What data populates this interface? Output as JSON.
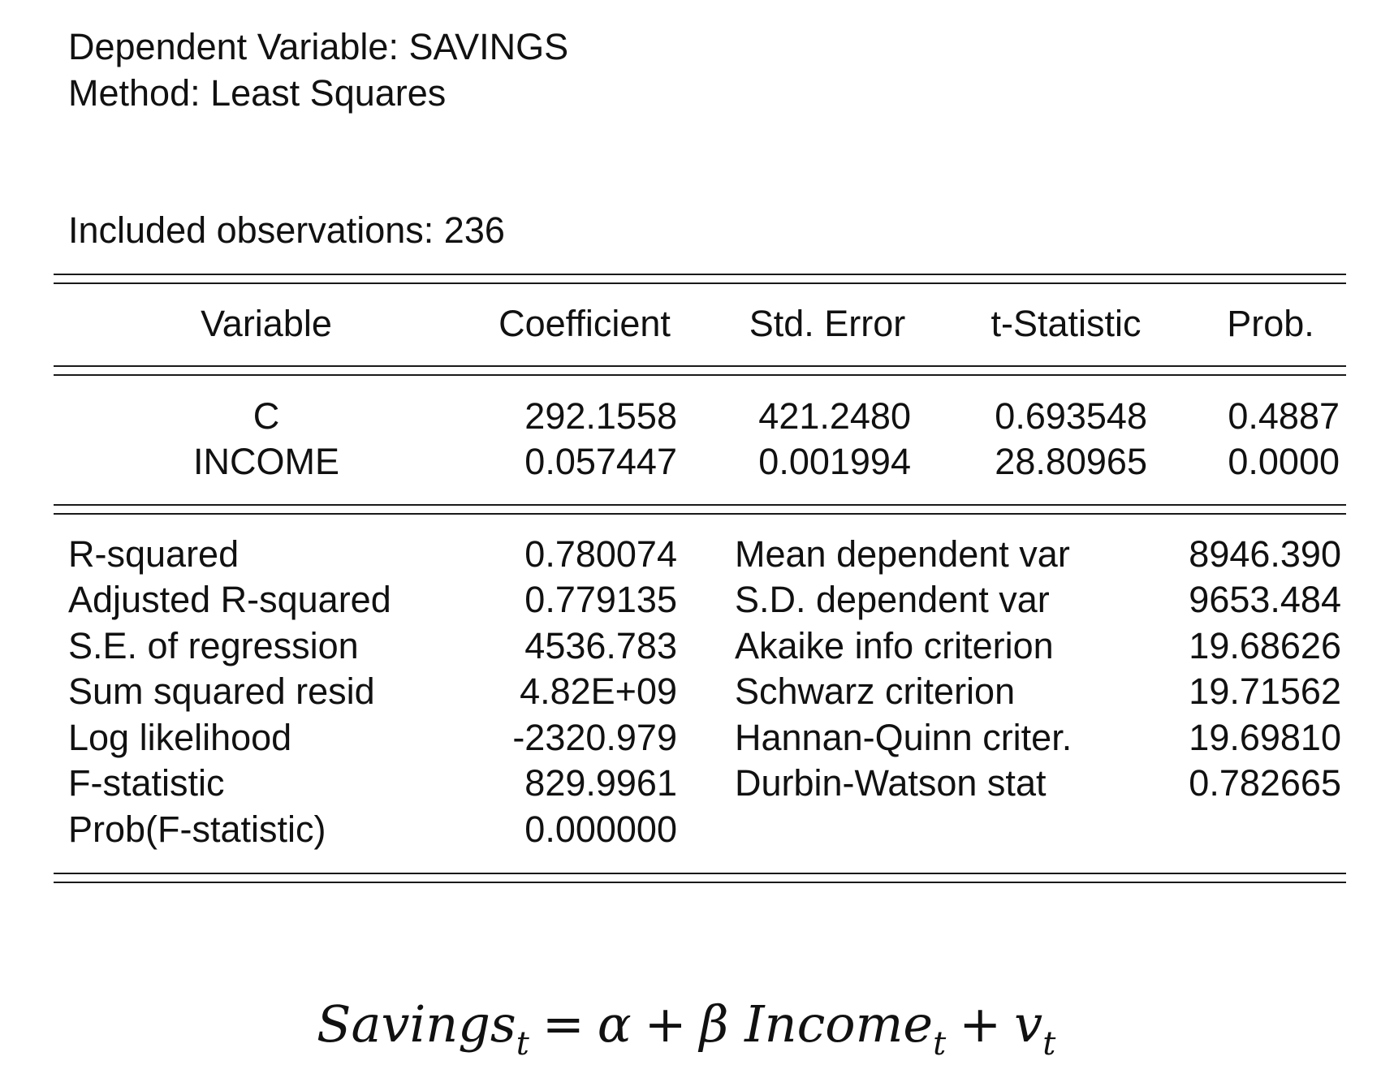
{
  "header": {
    "dependent_variable": "Dependent Variable: SAVINGS",
    "method": "Method: Least Squares",
    "observations": "Included observations: 236"
  },
  "coef_table": {
    "columns": [
      "Variable",
      "Coefficient",
      "Std. Error",
      "t-Statistic",
      "Prob."
    ],
    "rows": [
      [
        "C",
        "292.1558",
        "421.2480",
        "0.693548",
        "0.4887"
      ],
      [
        "INCOME",
        "0.057447",
        "0.001994",
        "28.80965",
        "0.0000"
      ]
    ]
  },
  "stats": {
    "left": [
      {
        "label": "R-squared",
        "value": "0.780074"
      },
      {
        "label": "Adjusted R-squared",
        "value": "0.779135"
      },
      {
        "label": "S.E. of regression",
        "value": "4536.783"
      },
      {
        "label": "Sum squared resid",
        "value": "4.82E+09"
      },
      {
        "label": "Log likelihood",
        "value": "-2320.979"
      },
      {
        "label": "F-statistic",
        "value": "829.9961"
      },
      {
        "label": "Prob(F-statistic)",
        "value": "0.000000"
      }
    ],
    "right": [
      {
        "label": "Mean dependent var",
        "value": "8946.390"
      },
      {
        "label": "S.D. dependent var",
        "value": "9653.484"
      },
      {
        "label": "Akaike info criterion",
        "value": "19.68626"
      },
      {
        "label": "Schwarz criterion",
        "value": "19.71562"
      },
      {
        "label": "Hannan-Quinn criter.",
        "value": "19.69810"
      },
      {
        "label": "Durbin-Watson stat",
        "value": "0.782665"
      }
    ]
  },
  "equation": {
    "lhs": "Savings",
    "lhs_sub": "t",
    "equals": "=",
    "alpha": "α",
    "plus1": "+",
    "beta": "β",
    "rhs_var": "Income",
    "rhs_sub": "t",
    "plus2": "+",
    "err": "v",
    "err_sub": "t"
  }
}
